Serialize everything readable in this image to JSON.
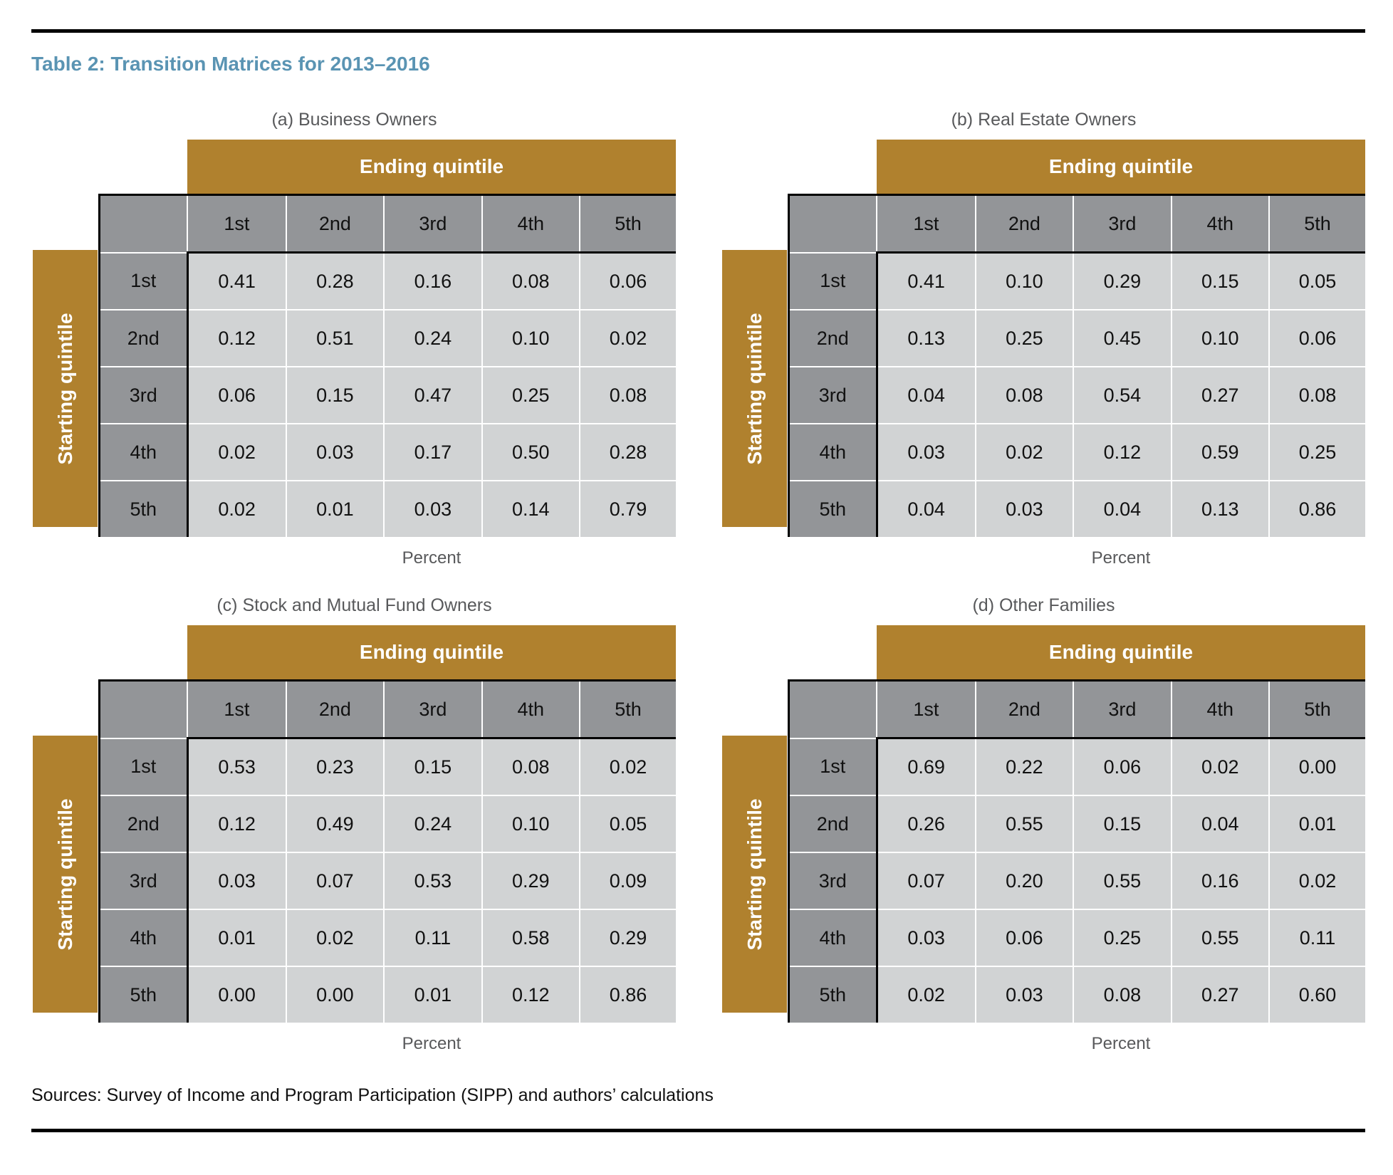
{
  "title": "Table 2: Transition Matrices for 2013–2016",
  "ending_label": "Ending quintile",
  "starting_label": "Starting quintile",
  "unit_label": "Percent",
  "quintiles": [
    "1st",
    "2nd",
    "3rd",
    "4th",
    "5th"
  ],
  "colors": {
    "gold": "#b0812e",
    "header_gray": "#939598",
    "cell_gray": "#d1d3d4",
    "title_blue": "#5a94b3"
  },
  "panels": [
    {
      "subtitle": "(a) Business Owners",
      "rows": [
        [
          "0.41",
          "0.28",
          "0.16",
          "0.08",
          "0.06"
        ],
        [
          "0.12",
          "0.51",
          "0.24",
          "0.10",
          "0.02"
        ],
        [
          "0.06",
          "0.15",
          "0.47",
          "0.25",
          "0.08"
        ],
        [
          "0.02",
          "0.03",
          "0.17",
          "0.50",
          "0.28"
        ],
        [
          "0.02",
          "0.01",
          "0.03",
          "0.14",
          "0.79"
        ]
      ]
    },
    {
      "subtitle": "(b) Real Estate Owners",
      "rows": [
        [
          "0.41",
          "0.10",
          "0.29",
          "0.15",
          "0.05"
        ],
        [
          "0.13",
          "0.25",
          "0.45",
          "0.10",
          "0.06"
        ],
        [
          "0.04",
          "0.08",
          "0.54",
          "0.27",
          "0.08"
        ],
        [
          "0.03",
          "0.02",
          "0.12",
          "0.59",
          "0.25"
        ],
        [
          "0.04",
          "0.03",
          "0.04",
          "0.13",
          "0.86"
        ]
      ]
    },
    {
      "subtitle": "(c) Stock and Mutual Fund Owners",
      "rows": [
        [
          "0.53",
          "0.23",
          "0.15",
          "0.08",
          "0.02"
        ],
        [
          "0.12",
          "0.49",
          "0.24",
          "0.10",
          "0.05"
        ],
        [
          "0.03",
          "0.07",
          "0.53",
          "0.29",
          "0.09"
        ],
        [
          "0.01",
          "0.02",
          "0.11",
          "0.58",
          "0.29"
        ],
        [
          "0.00",
          "0.00",
          "0.01",
          "0.12",
          "0.86"
        ]
      ]
    },
    {
      "subtitle": "(d) Other Families",
      "rows": [
        [
          "0.69",
          "0.22",
          "0.06",
          "0.02",
          "0.00"
        ],
        [
          "0.26",
          "0.55",
          "0.15",
          "0.04",
          "0.01"
        ],
        [
          "0.07",
          "0.20",
          "0.55",
          "0.16",
          "0.02"
        ],
        [
          "0.03",
          "0.06",
          "0.25",
          "0.55",
          "0.11"
        ],
        [
          "0.02",
          "0.03",
          "0.08",
          "0.27",
          "0.60"
        ]
      ]
    }
  ],
  "sources": "Sources: Survey of Income and Program Participation (SIPP) and authors’ calculations"
}
